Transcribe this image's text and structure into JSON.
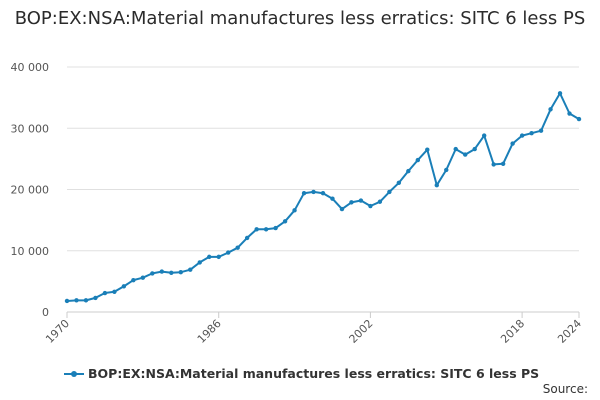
{
  "colors": {
    "series": "#1a7fb8",
    "grid": "#e0e0e0",
    "axis": "#cccccc",
    "text": "#555555"
  },
  "footer": {
    "source_label": "Source:"
  },
  "chart_data": {
    "type": "line",
    "title": "BOP:EX:NSA:Material manufactures less erratics: SITC 6 less PS",
    "xlabel": "",
    "ylabel": "",
    "xlim": [
      1970,
      2024
    ],
    "ylim": [
      0,
      40000
    ],
    "x_ticks": [
      1970,
      1986,
      2002,
      2018,
      2024
    ],
    "y_ticks": [
      0,
      10000,
      20000,
      30000,
      40000
    ],
    "y_tick_labels": [
      "0",
      "10 000",
      "20 000",
      "30 000",
      "40 000"
    ],
    "legend_position": "bottom-left",
    "series": [
      {
        "name": "BOP:EX:NSA:Material manufactures less erratics: SITC 6 less PS",
        "x": [
          1970,
          1971,
          1972,
          1973,
          1974,
          1975,
          1976,
          1977,
          1978,
          1979,
          1980,
          1981,
          1982,
          1983,
          1984,
          1985,
          1986,
          1987,
          1988,
          1989,
          1990,
          1991,
          1992,
          1993,
          1994,
          1995,
          1996,
          1997,
          1998,
          1999,
          2000,
          2001,
          2002,
          2003,
          2004,
          2005,
          2006,
          2007,
          2008,
          2009,
          2010,
          2011,
          2012,
          2013,
          2014,
          2015,
          2016,
          2017,
          2018,
          2019,
          2020,
          2021,
          2022,
          2023,
          2024
        ],
        "values": [
          1800,
          1900,
          1900,
          2300,
          3100,
          3300,
          4200,
          5200,
          5600,
          6300,
          6600,
          6400,
          6500,
          6900,
          8100,
          9000,
          9000,
          9700,
          10500,
          12100,
          13500,
          13500,
          13700,
          14800,
          16600,
          19400,
          19600,
          19400,
          18500,
          16800,
          17900,
          18200,
          17300,
          18000,
          19600,
          21100,
          23000,
          24800,
          26500,
          20700,
          23200,
          26600,
          25700,
          26600,
          28800,
          24100,
          24200,
          27500,
          28800,
          29200,
          29600,
          33100,
          35700,
          32400,
          31500
        ]
      }
    ]
  }
}
